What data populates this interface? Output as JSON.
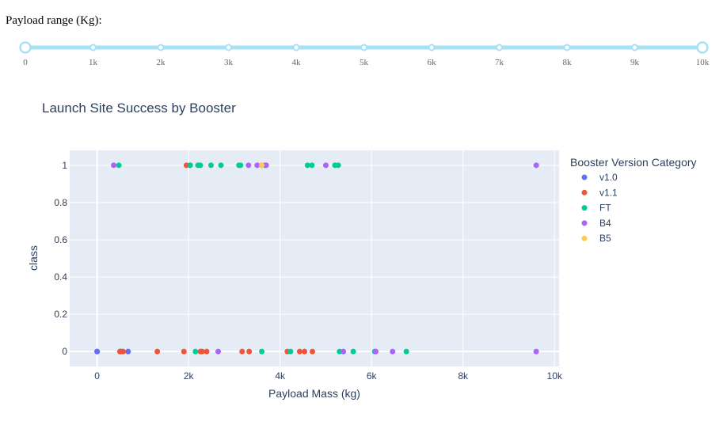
{
  "slider": {
    "label": "Payload range (Kg):",
    "min": 0,
    "max": 10000,
    "value": [
      0,
      10000
    ],
    "marks": [
      "0",
      "1k",
      "2k",
      "3k",
      "4k",
      "5k",
      "6k",
      "7k",
      "8k",
      "9k",
      "10k"
    ],
    "track_color": "#a7e1f5",
    "handle_color": "#a7e1f5"
  },
  "chart_data": {
    "type": "scatter",
    "title": "Launch Site Success by Booster",
    "xlabel": "Payload Mass (kg)",
    "ylabel": "class",
    "xlim": [
      -600,
      10100
    ],
    "ylim": [
      -0.08,
      1.08
    ],
    "x_ticks": [
      0,
      2000,
      4000,
      6000,
      8000,
      10000
    ],
    "x_tick_labels": [
      "0",
      "2k",
      "4k",
      "6k",
      "8k",
      "10k"
    ],
    "y_ticks": [
      0,
      0.2,
      0.4,
      0.6,
      0.8,
      1
    ],
    "y_tick_labels": [
      "0",
      "0.2",
      "0.4",
      "0.6",
      "0.8",
      "1"
    ],
    "grid": true,
    "plot_bg": "#e5ecf6",
    "legend_title": "Booster Version Category",
    "legend_position": "right",
    "series": [
      {
        "name": "v1.0",
        "color": "#636efa",
        "points": [
          [
            0,
            0
          ],
          [
            0,
            0
          ],
          [
            525,
            0
          ],
          [
            677,
            0
          ],
          [
            500,
            0
          ]
        ]
      },
      {
        "name": "v1.1",
        "color": "#ef553b",
        "points": [
          [
            500,
            0
          ],
          [
            570,
            0
          ],
          [
            1316,
            0
          ],
          [
            1898,
            0
          ],
          [
            1952,
            1
          ],
          [
            2034,
            1
          ],
          [
            2257,
            0
          ],
          [
            2296,
            0
          ],
          [
            2395,
            0
          ],
          [
            3170,
            0
          ],
          [
            3325,
            0
          ],
          [
            4159,
            0
          ],
          [
            4428,
            0
          ],
          [
            4535,
            0
          ],
          [
            4707,
            0
          ],
          [
            3600,
            1
          ]
        ]
      },
      {
        "name": "FT",
        "color": "#00cc96",
        "points": [
          [
            475,
            1
          ],
          [
            2034,
            1
          ],
          [
            2150,
            0
          ],
          [
            2205,
            1
          ],
          [
            2257,
            1
          ],
          [
            2490,
            1
          ],
          [
            2708,
            1
          ],
          [
            3100,
            1
          ],
          [
            3136,
            1
          ],
          [
            3600,
            0
          ],
          [
            3669,
            1
          ],
          [
            4230,
            0
          ],
          [
            4600,
            1
          ],
          [
            4696,
            1
          ],
          [
            5200,
            1
          ],
          [
            5271,
            1
          ],
          [
            5300,
            0
          ],
          [
            5600,
            0
          ],
          [
            6070,
            0
          ],
          [
            6761,
            0
          ]
        ]
      },
      {
        "name": "B4",
        "color": "#ab63fa",
        "points": [
          [
            362,
            1
          ],
          [
            2647,
            0
          ],
          [
            3310,
            1
          ],
          [
            3500,
            1
          ],
          [
            3696,
            1
          ],
          [
            5000,
            1
          ],
          [
            5384,
            0
          ],
          [
            6092,
            0
          ],
          [
            6460,
            0
          ],
          [
            9600,
            1
          ],
          [
            9600,
            0
          ]
        ]
      },
      {
        "name": "B5",
        "color": "#fecb52",
        "points": [
          [
            3600,
            1
          ]
        ]
      }
    ]
  }
}
